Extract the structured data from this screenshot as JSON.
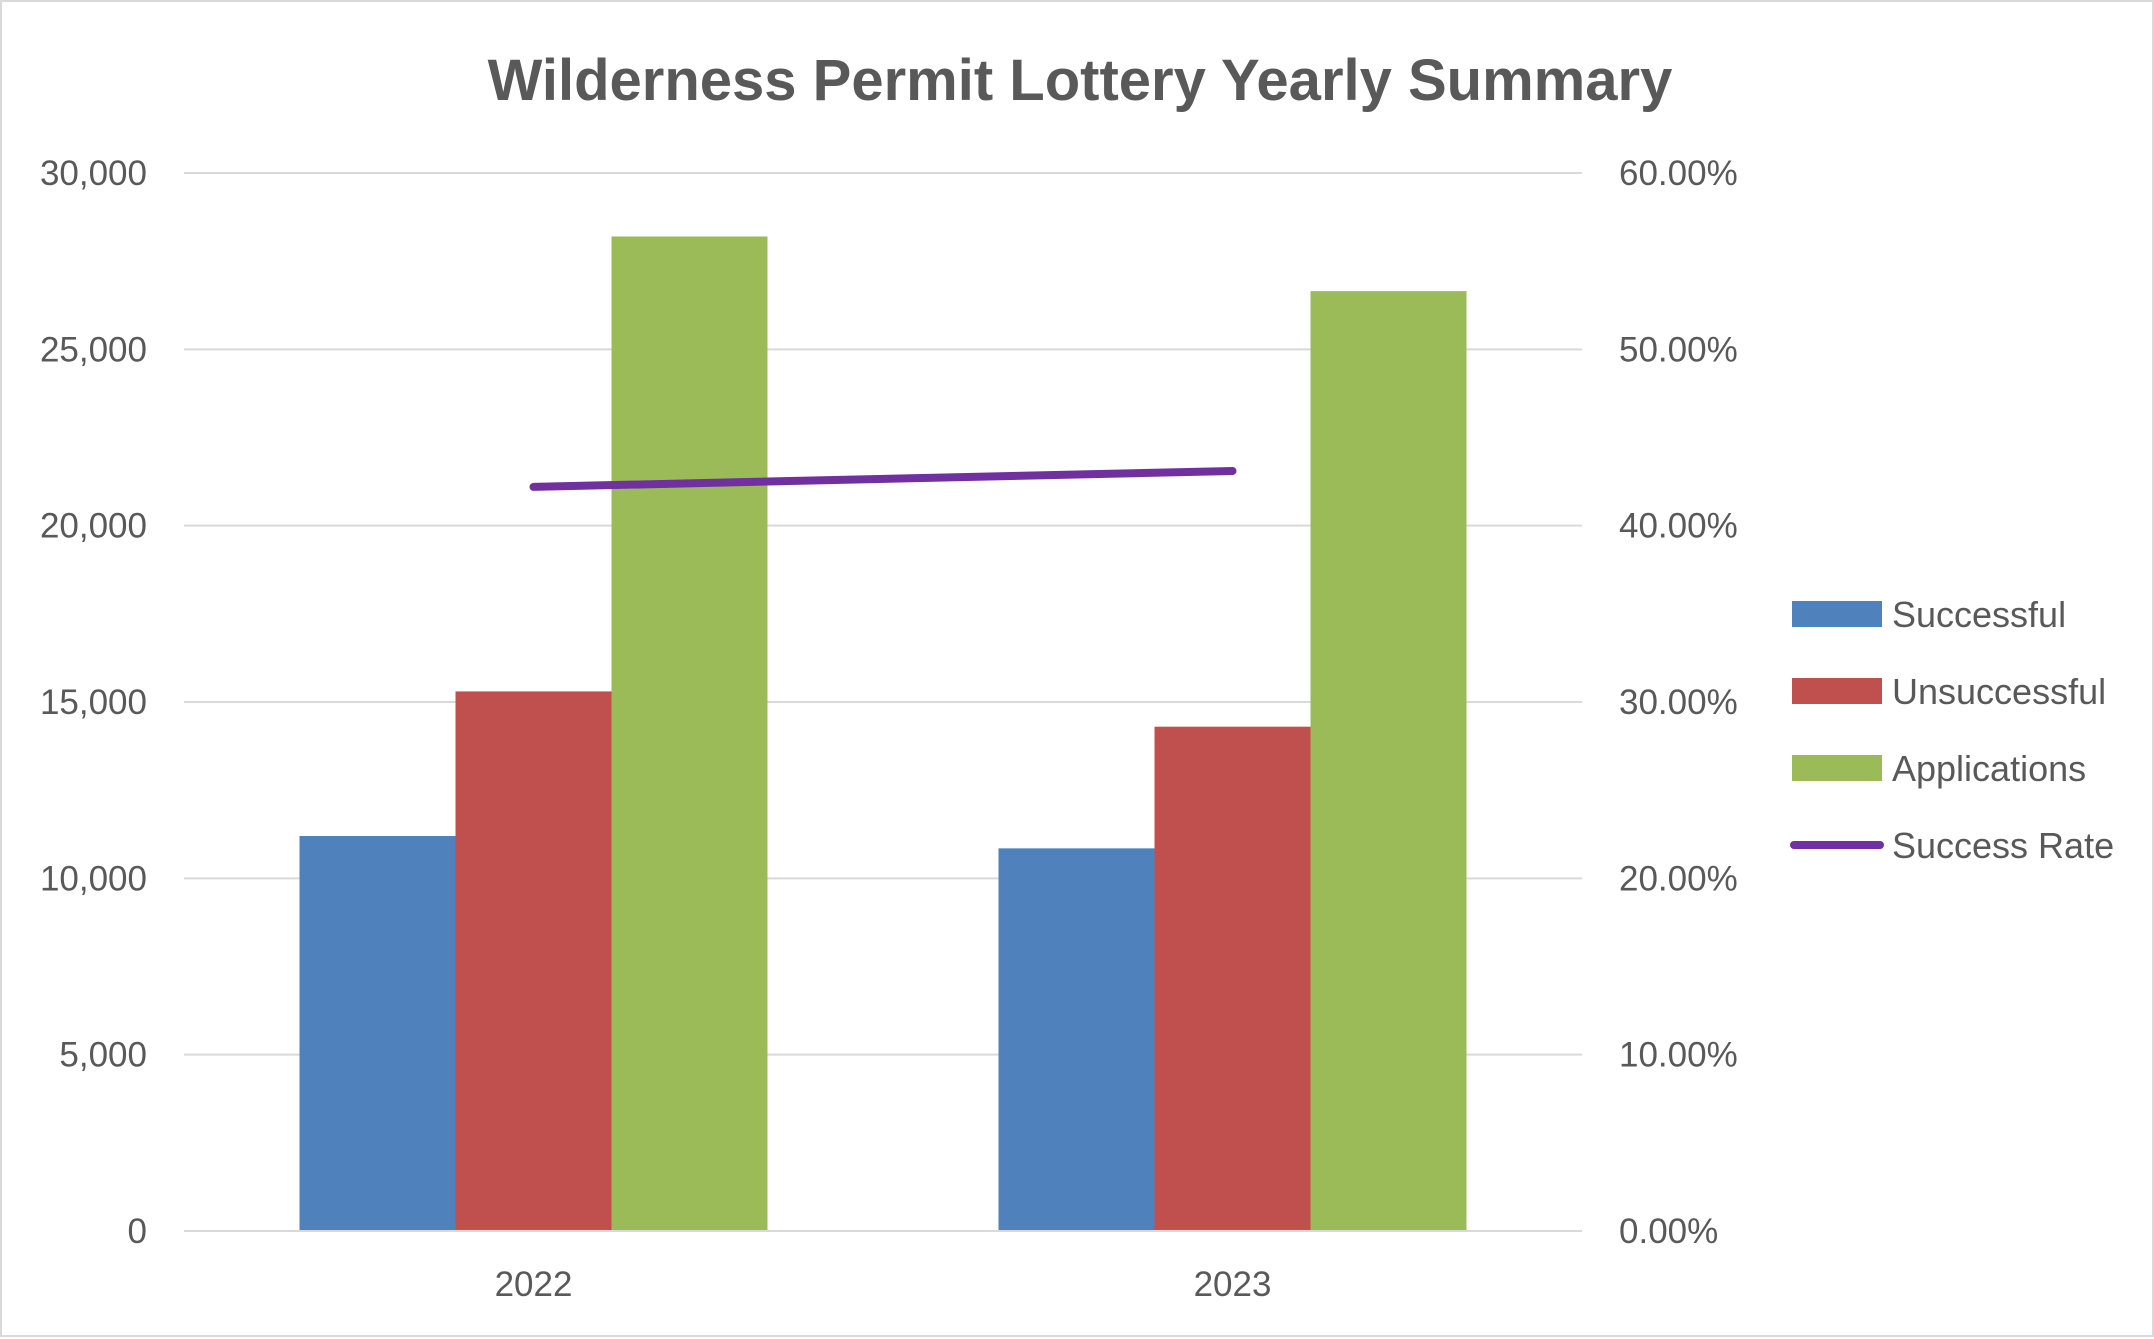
{
  "chart_data": {
    "type": "bar",
    "title": "Wilderness Permit Lottery Yearly Summary",
    "categories": [
      "2022",
      "2023"
    ],
    "series": [
      {
        "name": "Successful",
        "type": "bar",
        "axis": "left",
        "color": "#4f81bd",
        "values": [
          11200,
          10850
        ]
      },
      {
        "name": "Unsuccessful",
        "type": "bar",
        "axis": "left",
        "color": "#c0504d",
        "values": [
          15300,
          14300
        ]
      },
      {
        "name": "Applications",
        "type": "bar",
        "axis": "left",
        "color": "#9bbb59",
        "values": [
          28200,
          26650
        ]
      },
      {
        "name": "Success Rate",
        "type": "line",
        "axis": "right",
        "color": "#7030a0",
        "values": [
          42.2,
          43.1
        ]
      }
    ],
    "y_left": {
      "ylim": [
        0,
        30000
      ],
      "ticks": [
        "0",
        "5,000",
        "10,000",
        "15,000",
        "20,000",
        "25,000",
        "30,000"
      ]
    },
    "y_right": {
      "ylim": [
        0,
        60
      ],
      "unit": "%",
      "ticks": [
        "0.00%",
        "10.00%",
        "20.00%",
        "30.00%",
        "40.00%",
        "50.00%",
        "60.00%"
      ]
    },
    "grid": true,
    "legend_position": "right"
  }
}
